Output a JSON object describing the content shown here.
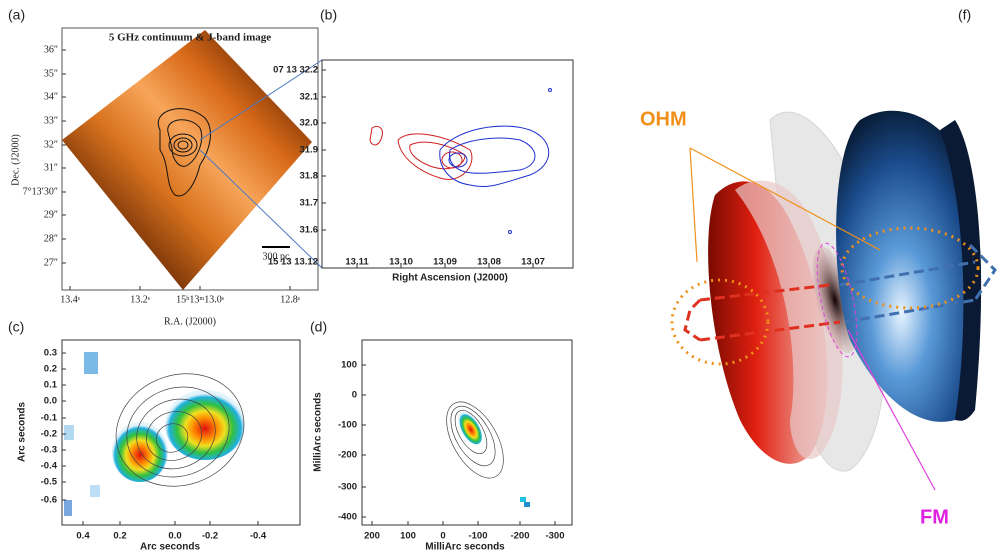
{
  "panels": {
    "a": {
      "label": "(a)",
      "title": "5 GHz continuum & J-band image",
      "yticks": [
        "36″",
        "35″",
        "34″",
        "33″",
        "32″",
        "31″",
        "7°13′30″",
        "29″",
        "28″",
        "27″"
      ],
      "xticks": [
        "13.4ˢ",
        "13.2ˢ",
        "15ʰ13ᵐ13.0ˢ",
        "12.8ˢ"
      ],
      "ylabel": "Dec. (J2000)",
      "xlabel": "R.A. (J2000)",
      "scale_bar": "300 pc"
    },
    "b": {
      "label": "(b)",
      "yticks": [
        "07 13 32.2",
        "32.1",
        "32.0",
        "31.9",
        "31.8",
        "31.7",
        "31.6"
      ],
      "xticks": [
        "15 13 13.12",
        "13.11",
        "13.10",
        "13.09",
        "13.08",
        "13.07"
      ],
      "xlabel": "Right Ascension (J2000)"
    },
    "c": {
      "label": "(c)",
      "yticks": [
        "0.3",
        "0.2",
        "0.1",
        "0.0",
        "-0.1",
        "-0.2",
        "-0.3",
        "-0.4",
        "-0.5",
        "-0.6"
      ],
      "xticks": [
        "0.4",
        "0.2",
        "0.0",
        "-0.2",
        "-0.4"
      ],
      "ylabel": "Arc seconds",
      "xlabel": "Arc seconds"
    },
    "d": {
      "label": "(d)",
      "yticks": [
        "100",
        "0",
        "-100",
        "-200",
        "-300",
        "-400"
      ],
      "xticks": [
        "200",
        "100",
        "0",
        "-100",
        "-200",
        "-300"
      ],
      "ylabel": "MilliArc seconds",
      "xlabel": "MilliArc seconds"
    },
    "f": {
      "label": "(f)",
      "ohm": "OHM",
      "fm": "FM"
    }
  }
}
